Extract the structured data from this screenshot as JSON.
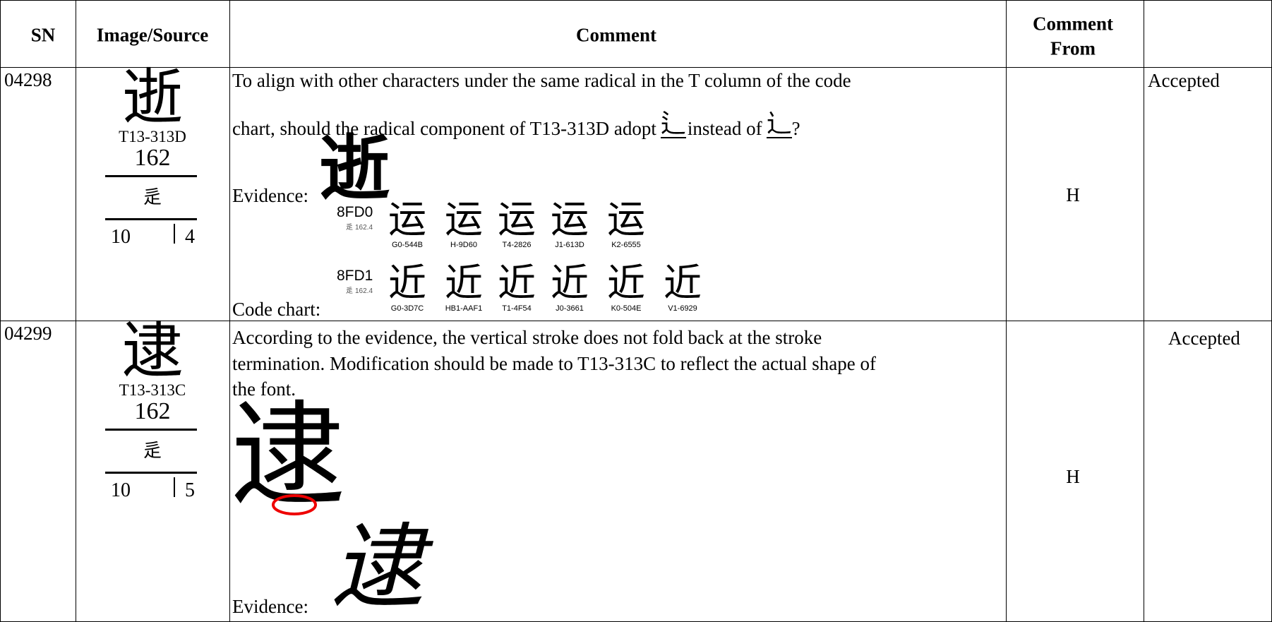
{
  "table": {
    "headers": [
      "SN",
      "Image/Source",
      "Comment",
      [
        "Comment",
        "From"
      ]
    ],
    "rows": [
      {
        "sn": "04298",
        "source": {
          "glyph": "逝",
          "code": "T13-313D",
          "radical_number": "162",
          "radical": "辵",
          "strokes": "10",
          "extra": "4"
        },
        "comment": {
          "lines": [
            "To align with other characters under the same radical in the T column of the code",
            "chart, should the radical component of T13-313D adopt"
          ],
          "glyph_a": "⻍",
          "between": "instead of",
          "glyph_b": "⻌",
          "end": "?",
          "evidence_label": "Evidence:",
          "evidence_glyph": "逝",
          "code_chart_label": "Code chart:",
          "code_chart": [
            {
              "code": "8FD0",
              "radical": "辵",
              "index": "162.4",
              "glyph": "运",
              "sources": [
                "G0-544B",
                "H-9D60",
                "T4-2826",
                "J1-613D",
                "K2-6555"
              ]
            },
            {
              "code": "8FD1",
              "radical": "辵",
              "index": "162.4",
              "glyph": "近",
              "sources": [
                "G0-3D7C",
                "HB1-AAF1",
                "T1-4F54",
                "J0-3661",
                "K0-504E",
                "V1-6929"
              ]
            }
          ]
        },
        "comment_from": "H",
        "status": "Accepted"
      },
      {
        "sn": "04299",
        "source": {
          "glyph": "逮",
          "code": "T13-313C",
          "radical_number": "162",
          "radical": "辵",
          "strokes": "10",
          "extra": "5"
        },
        "comment": {
          "lines": [
            "According to the evidence, the vertical stroke does not fold back at the stroke",
            "termination.  Modification should be made to T13-313C to reflect the actual shape of",
            "the font."
          ],
          "glyph_main": "逮",
          "evidence_glyph": "逮",
          "evidence_label": "Evidence:"
        },
        "comment_from": "H",
        "status": "Accepted"
      }
    ]
  }
}
